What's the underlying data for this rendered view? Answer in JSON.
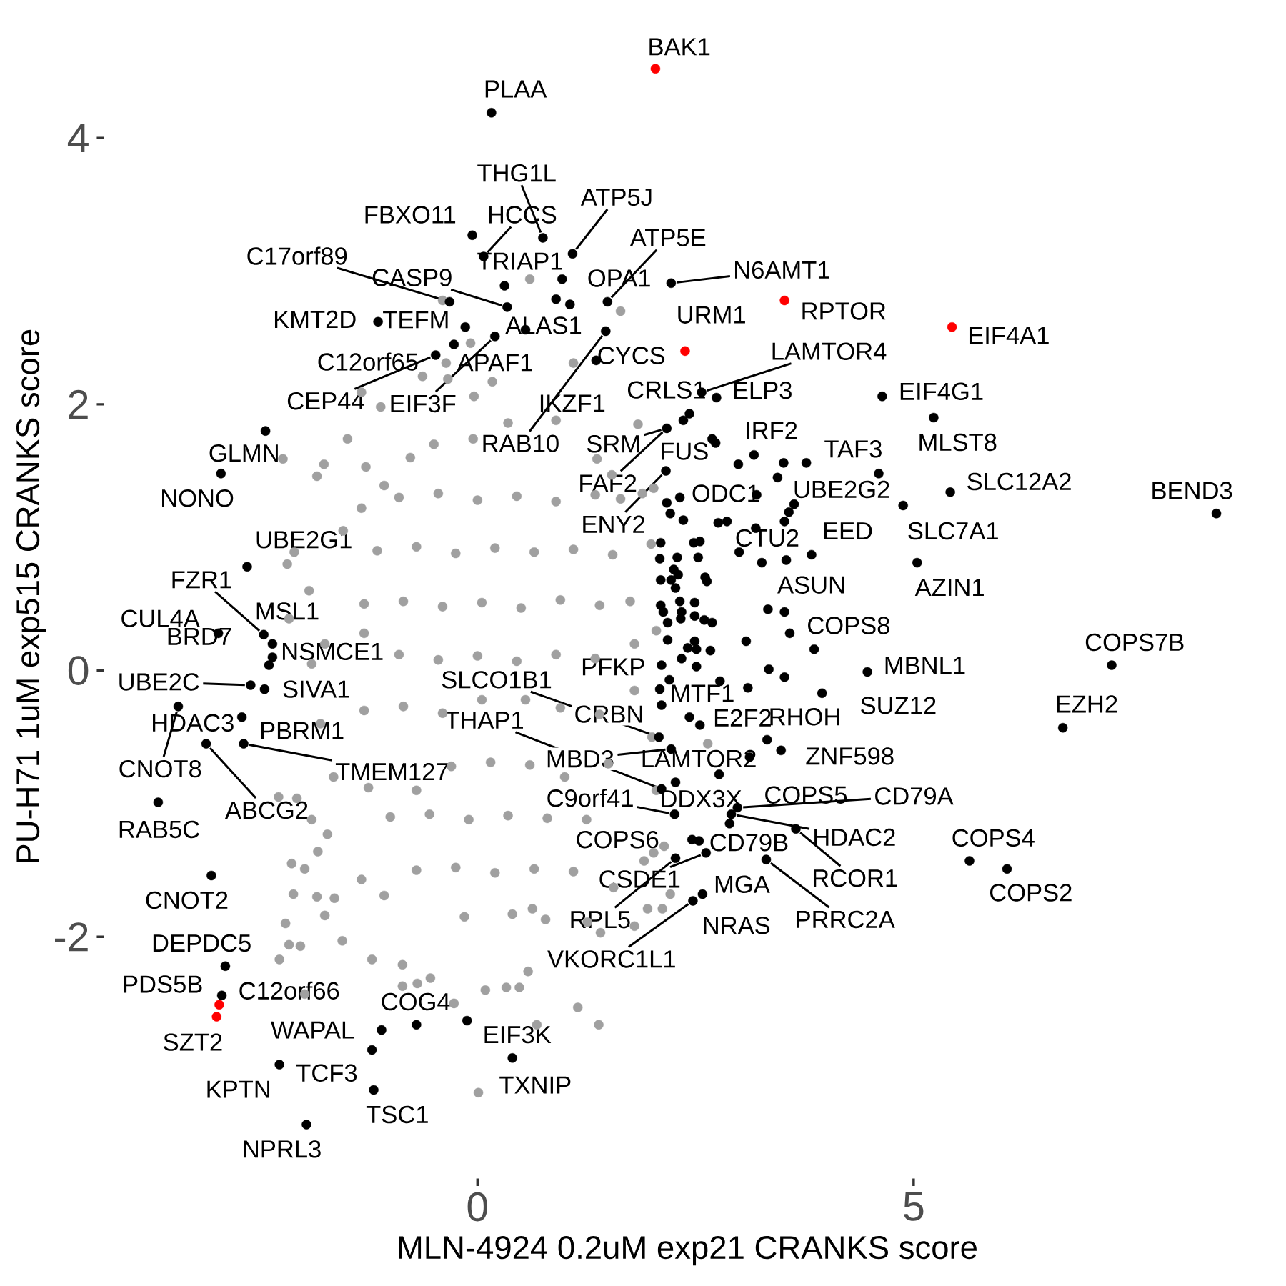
{
  "chart_data": {
    "type": "scatter",
    "xlabel": "MLN-4924 0.2uM exp21 CRANKS score",
    "ylabel": "PU-H71 1uM exp515 CRANKS score",
    "xlim": [
      -4.27,
      9.08
    ],
    "ylim": [
      -3.81,
      4.92
    ],
    "xticks": [
      0,
      5
    ],
    "yticks": [
      -2,
      0,
      2,
      4
    ],
    "marker": "circle",
    "series": [
      {
        "color": "#a0a0a0",
        "x": [
          -0.5,
          -0.05,
          0.35,
          0.9,
          -0.9,
          -0.45,
          0,
          0.45,
          0.9,
          1.35,
          -1.15,
          -0.7,
          -0.25,
          0.2,
          0.65,
          1.1,
          1.55,
          -1.3,
          -0.85,
          -0.4,
          0.05,
          0.5,
          0.95,
          1.4,
          1.75,
          -1.3,
          -0.9,
          -0.45,
          0,
          0.45,
          0.9,
          1.35,
          1.8,
          -1.3,
          -0.85,
          -0.4,
          0.05,
          0.55,
          0.95,
          1.4,
          1.8,
          -1.25,
          -0.7,
          -0.3,
          0.15,
          0.6,
          1.0,
          1.5,
          -1.0,
          -0.55,
          -0.1,
          0.35,
          0.8,
          1.25,
          -0.7,
          -0.25,
          0.2,
          0.65,
          1.1,
          -0.15,
          0.4,
          -0.4,
          0.6,
          1.64,
          1.1,
          -0.08,
          -0.36,
          -0.34,
          -0.63,
          -1.33,
          -1.11,
          -1.49,
          -1.76,
          -1.84,
          -2.23,
          -1.28,
          -1.07,
          -0.77,
          -2.18,
          -2.1,
          -1.93,
          -1.54,
          -1.33,
          -0.04,
          0.17,
          1.84,
          2.02,
          1.89,
          1.64,
          1.37,
          1.54,
          1.99,
          -2.16,
          -2.28,
          -2.07,
          -1.83,
          -2.13,
          -1.98,
          -2.11,
          -2.2,
          -1.84,
          -1.64,
          -1.75,
          -2.16,
          -2.03,
          -2.27,
          -1.55,
          -1.21,
          -0.86,
          -0.69,
          -0.86,
          -0.54,
          -0.27,
          0.01,
          0.09,
          -1.98,
          -1.9,
          -1.72,
          -1.33,
          -1.07,
          1.15,
          1.39,
          0.68,
          0.33,
          0.48,
          0.78,
          0.63,
          0.58,
          1.41,
          1.8,
          2.12,
          1.95,
          2.21,
          1.56,
          1.26,
          2.64,
          2.14,
          2.02,
          1.91,
          -1.75,
          -1.8,
          -1.65,
          -1.9,
          2.05,
          2,
          2.05
        ],
        "values": [
          1.7,
          1.74,
          1.86,
          1.88,
          1.3,
          1.33,
          1.28,
          1.31,
          1.27,
          1.32,
          0.9,
          0.93,
          0.88,
          0.92,
          0.89,
          0.91,
          0.87,
          0.5,
          0.52,
          0.48,
          0.51,
          0.47,
          0.53,
          0.49,
          0.52,
          0.28,
          0.12,
          0.08,
          0.11,
          0.07,
          0.12,
          0.09,
          0.2,
          -0.3,
          -0.27,
          -0.32,
          -0.22,
          -0.22,
          -0.28,
          -0.33,
          -0.15,
          -0.88,
          -0.9,
          -0.72,
          -0.69,
          -0.71,
          -0.8,
          -0.7,
          -1.1,
          -1.08,
          -1.12,
          -1.09,
          -1.11,
          -1.12,
          -1.5,
          -1.48,
          -1.52,
          -1.49,
          -1.51,
          -1.85,
          -1.83,
          2.78,
          2.94,
          2.7,
          2.31,
          2.46,
          2.31,
          2.19,
          2.21,
          2.09,
          1.98,
          1.74,
          1.55,
          1.46,
          1.59,
          1.53,
          1.39,
          1.6,
          0.8,
          0.89,
          0.6,
          1.05,
          1.22,
          2.06,
          2.17,
          1.85,
          1.37,
          1.33,
          1.29,
          1.59,
          1.47,
          0.95,
          0.39,
          -0.95,
          -0.96,
          -1.36,
          -1.45,
          -1.49,
          -1.68,
          -1.9,
          -1.7,
          -1.71,
          -1.84,
          -2.06,
          -2.07,
          -2.17,
          -2.03,
          -2.17,
          -2.21,
          -2.35,
          -2.37,
          -2.31,
          -2.5,
          -3.17,
          -2.4,
          -2.43,
          -1.12,
          -1.23,
          -1.57,
          -1.69,
          -2.53,
          -2.66,
          -2.66,
          -2.38,
          -2.38,
          -1.87,
          -1.79,
          -2.26,
          -1.97,
          -1.92,
          -1.79,
          -1.79,
          -1.68,
          -1.63,
          -1.89,
          -0.55,
          -1.32,
          -1.37,
          -1.43,
          0.2,
          -0.4,
          -0.8,
          0.05,
          0.3,
          -0.5,
          -0.9
        ]
      },
      {
        "color": "#000000",
        "x": [
          0.16,
          0.75,
          1.09,
          -0.06,
          0.07,
          1.49,
          -0.32,
          2.22,
          0.31,
          0.34,
          1.06,
          -1.14,
          -0.14,
          0.9,
          2.57,
          -0.27,
          1.36,
          0.55,
          2.43,
          2.74,
          4.64,
          -0.48,
          0.2,
          5.23,
          3.17,
          1.47,
          2.17,
          4.6,
          2.69,
          -2.43,
          5.42,
          3.63,
          8.47,
          2.32,
          -2.94,
          2.16,
          4.88,
          3.83,
          3.19,
          -2.64,
          -2.45,
          3.52,
          5.04,
          -2.35,
          -2.97,
          3.86,
          7.27,
          -2.35,
          -2.39,
          2.11,
          4.47,
          2.08,
          -2.6,
          -2.44,
          2.09,
          3.95,
          6.71,
          2.11,
          2.55,
          3.32,
          2.11,
          -2.7,
          -2.68,
          2.22,
          3.12,
          3.48,
          -3.43,
          2.26,
          2.27,
          2.89,
          2.98,
          -3.11,
          -3.66,
          2.91,
          5.64,
          2.46,
          2.54,
          3.65,
          2.62,
          2.58,
          6.07,
          -3.05,
          2.27,
          3.31,
          2.47,
          -2.89,
          -2.93,
          -0.7,
          -1.1,
          -0.12,
          -1.21,
          -2.27,
          0.4,
          -1.19,
          -1.96,
          0.97,
          2.36,
          2.73,
          2.99,
          2.17,
          2.21,
          2.36,
          3.2,
          3.77,
          3.51,
          3.44,
          3.57,
          3.52,
          3,
          3.26,
          3.54,
          2.76,
          2.86,
          3.33,
          3.58,
          3.08,
          3.34,
          3.52,
          3.1,
          2.78,
          2.2,
          2.43,
          2.77,
          2.1,
          2.09,
          2.29,
          2.48,
          2.55,
          2.53,
          2.25,
          2.3,
          2.1,
          2.22,
          2.27,
          2.61,
          2.63,
          2.32,
          2.49,
          2.1,
          2.13,
          2.34,
          2.18,
          2.33,
          2.49,
          2.6,
          2.69,
          2.18,
          2.49,
          2.41,
          2.51,
          2.67,
          2.34,
          2.51
        ],
        "values": [
          4.19,
          3.25,
          3.13,
          3.27,
          3.11,
          2.77,
          2.77,
          2.91,
          2.89,
          2.73,
          2.75,
          2.62,
          2.58,
          2.79,
          2.09,
          2.45,
          2.33,
          2.56,
          1.93,
          2.05,
          2.06,
          2.37,
          2.51,
          1.9,
          1.62,
          2.55,
          1.82,
          1.48,
          1.74,
          1.8,
          1.34,
          1.25,
          1.18,
          1.3,
          1.48,
          1.5,
          1.24,
          0.87,
          1.07,
          0.78,
          0.27,
          0.44,
          0.81,
          0.2,
          0.28,
          0.16,
          0.04,
          0.1,
          0.04,
          0.04,
          -0.01,
          -0.5,
          -0.11,
          -0.14,
          -0.14,
          -0.17,
          -0.43,
          -0.26,
          -0.41,
          -0.52,
          -0.89,
          -0.35,
          -0.55,
          -0.59,
          -0.65,
          -0.6,
          -0.27,
          -1.08,
          -0.84,
          -1.15,
          -1.03,
          -0.55,
          -0.99,
          -1.08,
          -1.43,
          -1.27,
          -1.28,
          -1.19,
          -1.37,
          -1.68,
          -1.49,
          -1.54,
          -1.41,
          -1.42,
          -1.73,
          -2.22,
          -2.44,
          -2.66,
          -2.7,
          -2.63,
          -2.85,
          -2.96,
          -2.91,
          -3.15,
          -3.41,
          2.94,
          1.88,
          1.71,
          1.55,
          1.26,
          1.18,
          1.13,
          1.32,
          1.56,
          1.56,
          1.45,
          1.19,
          1.12,
          0.89,
          0.81,
          0.83,
          1.11,
          1.12,
          0.46,
          0.28,
          0.22,
          0.01,
          -0.05,
          -0.13,
          -0.08,
          -0.07,
          -0.35,
          -0.78,
          0.96,
          0.84,
          0.85,
          0.96,
          0.97,
          0.85,
          0.76,
          0.72,
          0.68,
          0.68,
          0.62,
          0.7,
          0.67,
          0.52,
          0.51,
          0.49,
          0.44,
          0.44,
          0.36,
          0.39,
          0.41,
          0.38,
          0.36,
          0.23,
          0.22,
          0.17,
          0.16,
          0.15,
          0.09,
          0.03
        ]
      },
      {
        "color": "#ff0000",
        "x": [
          2.04,
          3.52,
          2.38,
          5.44,
          -2.96,
          -2.99
        ],
        "values": [
          4.52,
          2.78,
          2.4,
          2.58,
          -2.51,
          -2.6
        ]
      }
    ],
    "annotations": [
      {
        "text": "BAK1",
        "x": 2.04,
        "y": 4.52
      },
      {
        "text": "PLAA",
        "x": 0.16,
        "y": 4.19
      },
      {
        "text": "THG1L",
        "x": 0.75,
        "y": 3.25
      },
      {
        "text": "ATP5J",
        "x": 1.09,
        "y": 3.13
      },
      {
        "text": "FBXO11",
        "x": -0.06,
        "y": 3.27
      },
      {
        "text": "HCCS",
        "x": 0.07,
        "y": 3.11
      },
      {
        "text": "ATP5E",
        "x": 1.49,
        "y": 2.77
      },
      {
        "text": "C17orf89",
        "x": -0.32,
        "y": 2.77
      },
      {
        "text": "N6AMT1",
        "x": 2.22,
        "y": 2.91
      },
      {
        "text": "TRIAP1",
        "x": 0.31,
        "y": 2.89
      },
      {
        "text": "CASP9",
        "x": 0.34,
        "y": 2.73
      },
      {
        "text": "OPA1",
        "x": 1.06,
        "y": 2.75
      },
      {
        "text": "RPTOR",
        "x": 3.52,
        "y": 2.78
      },
      {
        "text": "URM1",
        "x": 2.38,
        "y": 2.4
      },
      {
        "text": "EIF4A1",
        "x": 5.44,
        "y": 2.58
      },
      {
        "text": "KMT2D",
        "x": -1.14,
        "y": 2.62
      },
      {
        "text": "TEFM",
        "x": -0.14,
        "y": 2.58
      },
      {
        "text": "ALAS1",
        "x": 0.9,
        "y": 2.79
      },
      {
        "text": "LAMTOR4",
        "x": 2.57,
        "y": 2.09
      },
      {
        "text": "C12orf65",
        "x": -0.27,
        "y": 2.45
      },
      {
        "text": "CYCS",
        "x": 1.36,
        "y": 2.33
      },
      {
        "text": "APAF1",
        "x": 0.55,
        "y": 2.56
      },
      {
        "text": "CRLS1",
        "x": 2.43,
        "y": 1.93
      },
      {
        "text": "ELP3",
        "x": 2.74,
        "y": 2.05
      },
      {
        "text": "EIF4G1",
        "x": 4.64,
        "y": 2.06
      },
      {
        "text": "CEP44",
        "x": -0.48,
        "y": 2.37
      },
      {
        "text": "EIF3F",
        "x": 0.2,
        "y": 2.51
      },
      {
        "text": "IKZF1",
        "x": 1.47,
        "y": 2.55
      },
      {
        "text": "MLST8",
        "x": 5.23,
        "y": 1.9
      },
      {
        "text": "IRF2",
        "x": 3.17,
        "y": 1.62
      },
      {
        "text": "RAB10",
        "x": 1.47,
        "y": 2.55
      },
      {
        "text": "SRM",
        "x": 2.17,
        "y": 1.82
      },
      {
        "text": "TAF3",
        "x": 4.6,
        "y": 1.48
      },
      {
        "text": "FUS",
        "x": 2.69,
        "y": 1.74
      },
      {
        "text": "GLMN",
        "x": -2.43,
        "y": 1.8
      },
      {
        "text": "FAF2",
        "x": 2.17,
        "y": 1.82
      },
      {
        "text": "SLC12A2",
        "x": 5.42,
        "y": 1.34
      },
      {
        "text": "UBE2G2",
        "x": 3.63,
        "y": 1.25
      },
      {
        "text": "BEND3",
        "x": 8.47,
        "y": 1.18
      },
      {
        "text": "ODC1",
        "x": 2.32,
        "y": 1.3
      },
      {
        "text": "NONO",
        "x": -2.94,
        "y": 1.48
      },
      {
        "text": "ENY2",
        "x": 2.16,
        "y": 1.5
      },
      {
        "text": "SLC7A1",
        "x": 4.88,
        "y": 1.24
      },
      {
        "text": "EED",
        "x": 3.83,
        "y": 0.87
      },
      {
        "text": "CTU2",
        "x": 3.19,
        "y": 1.07
      },
      {
        "text": "UBE2G1",
        "x": -2.64,
        "y": 0.78
      },
      {
        "text": "FZR1",
        "x": -2.45,
        "y": 0.27
      },
      {
        "text": "ASUN",
        "x": 3.52,
        "y": 0.44
      },
      {
        "text": "AZIN1",
        "x": 5.04,
        "y": 0.81
      },
      {
        "text": "MSL1",
        "x": -2.35,
        "y": 0.2
      },
      {
        "text": "CUL4A",
        "x": -2.97,
        "y": 0.28
      },
      {
        "text": "COPS8",
        "x": 3.86,
        "y": 0.16
      },
      {
        "text": "COPS7B",
        "x": 7.27,
        "y": 0.04
      },
      {
        "text": "NSMCE1",
        "x": -2.35,
        "y": 0.1
      },
      {
        "text": "BRD7",
        "x": -2.39,
        "y": 0.04
      },
      {
        "text": "PFKP",
        "x": 2.11,
        "y": 0.04
      },
      {
        "text": "MBNL1",
        "x": 4.47,
        "y": -0.01
      },
      {
        "text": "SLCO1B1",
        "x": 2.08,
        "y": -0.5
      },
      {
        "text": "UBE2C",
        "x": -2.6,
        "y": -0.11
      },
      {
        "text": "SIVA1",
        "x": -2.44,
        "y": -0.14
      },
      {
        "text": "MTF1",
        "x": 2.09,
        "y": -0.14
      },
      {
        "text": "SUZ12",
        "x": 3.95,
        "y": -0.17
      },
      {
        "text": "EZH2",
        "x": 6.71,
        "y": -0.43
      },
      {
        "text": "CRBN",
        "x": 2.11,
        "y": -0.26
      },
      {
        "text": "E2F2",
        "x": 2.55,
        "y": -0.41
      },
      {
        "text": "RHOH",
        "x": 3.32,
        "y": -0.52
      },
      {
        "text": "THAP1",
        "x": 2.11,
        "y": -0.89
      },
      {
        "text": "HDAC3",
        "x": -2.7,
        "y": -0.35
      },
      {
        "text": "PBRM1",
        "x": -2.68,
        "y": -0.55
      },
      {
        "text": "MBD3",
        "x": 2.22,
        "y": -0.59
      },
      {
        "text": "LAMTOR2",
        "x": 3.12,
        "y": -0.65
      },
      {
        "text": "ZNF598",
        "x": 3.48,
        "y": -0.6
      },
      {
        "text": "CNOT8",
        "x": -3.43,
        "y": -0.27
      },
      {
        "text": "TMEM127",
        "x": -2.68,
        "y": -0.55
      },
      {
        "text": "C9orf41",
        "x": 2.26,
        "y": -1.08
      },
      {
        "text": "DDX3X",
        "x": 2.27,
        "y": -0.84
      },
      {
        "text": "COPS5",
        "x": 2.89,
        "y": -1.15
      },
      {
        "text": "CD79A",
        "x": 2.98,
        "y": -1.03
      },
      {
        "text": "ABCG2",
        "x": -3.11,
        "y": -0.55
      },
      {
        "text": "RAB5C",
        "x": -3.66,
        "y": -0.99
      },
      {
        "text": "HDAC2",
        "x": 2.91,
        "y": -1.08
      },
      {
        "text": "COPS4",
        "x": 5.64,
        "y": -1.43
      },
      {
        "text": "COPS6",
        "x": 2.46,
        "y": -1.27
      },
      {
        "text": "CD79B",
        "x": 2.54,
        "y": -1.28
      },
      {
        "text": "RCOR1",
        "x": 3.65,
        "y": -1.19
      },
      {
        "text": "CSDE1",
        "x": 2.62,
        "y": -1.37
      },
      {
        "text": "MGA",
        "x": 2.58,
        "y": -1.68
      },
      {
        "text": "COPS2",
        "x": 6.07,
        "y": -1.49
      },
      {
        "text": "CNOT2",
        "x": -3.05,
        "y": -1.54
      },
      {
        "text": "RPL5",
        "x": 2.27,
        "y": -1.41
      },
      {
        "text": "PRRC2A",
        "x": 3.31,
        "y": -1.42
      },
      {
        "text": "NRAS",
        "x": 2.47,
        "y": -1.73
      },
      {
        "text": "DEPDC5",
        "x": -2.89,
        "y": -2.22
      },
      {
        "text": "VKORC1L1",
        "x": 2.47,
        "y": -1.73
      },
      {
        "text": "PDS5B",
        "x": -2.96,
        "y": -2.51
      },
      {
        "text": "C12orf66",
        "x": -2.93,
        "y": -2.44
      },
      {
        "text": "COG4",
        "x": -0.7,
        "y": -2.66
      },
      {
        "text": "WAPAL",
        "x": -1.1,
        "y": -2.7
      },
      {
        "text": "EIF3K",
        "x": -0.12,
        "y": -2.63
      },
      {
        "text": "SZT2",
        "x": -2.99,
        "y": -2.6
      },
      {
        "text": "TCF3",
        "x": -1.21,
        "y": -2.85
      },
      {
        "text": "KPTN",
        "x": -2.27,
        "y": -2.96
      },
      {
        "text": "TXNIP",
        "x": 0.4,
        "y": -2.91
      },
      {
        "text": "TSC1",
        "x": -1.19,
        "y": -3.15
      },
      {
        "text": "NPRL3",
        "x": -1.96,
        "y": -3.41
      }
    ]
  }
}
